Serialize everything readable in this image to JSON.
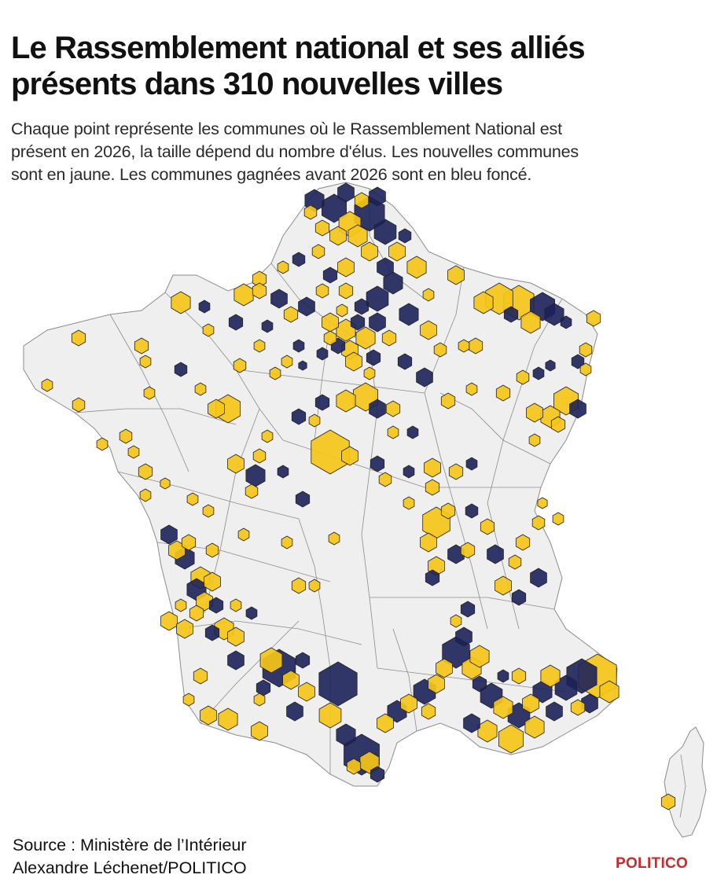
{
  "title_line1": "Le Rassemblement national et ses alliés",
  "title_line2": "présents dans 310 nouvelles villes",
  "subtitle_line1": "Chaque point représente les communes où le Rassemblement National est",
  "subtitle_line2": "présent en 2026, la taille dépend du nombre d'élus. Les nouvelles communes",
  "subtitle_line3": "sont en jaune. Les communes gagnées avant 2026 sont en bleu foncé.",
  "source_line1": "Source : Ministère de l’Intérieur",
  "source_line2": "Alexandre Léchenet/POLITICO",
  "logo": "POLITICO",
  "colors": {
    "new_communes": "#f5c518",
    "earlier_communes": "#1c2159",
    "land": "#efefef",
    "borders": "#8c8c8c",
    "brand": "#cf2a2a"
  },
  "legend": {
    "new_communes_color_word": "jaune",
    "earlier_communes_color_word": "bleu foncé"
  }
}
